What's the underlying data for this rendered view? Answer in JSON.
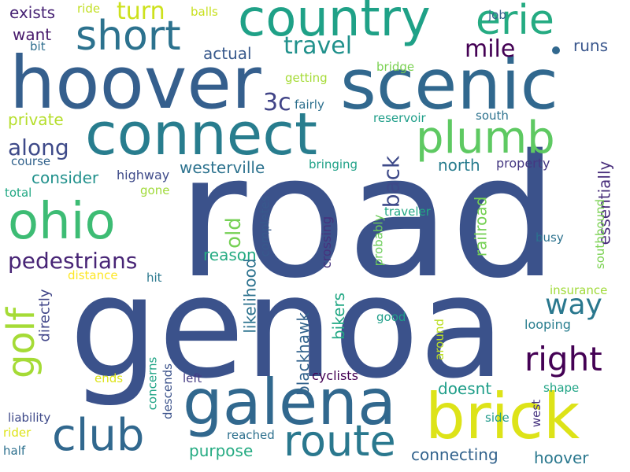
{
  "words": [
    {
      "text": "road",
      "color": "#3b528b"
    },
    {
      "text": "genoa",
      "color": "#3b528b"
    },
    {
      "text": "hoover",
      "color": "#355f8d"
    },
    {
      "text": "scenic",
      "color": "#31688e"
    },
    {
      "text": "connect",
      "color": "#287d8e"
    },
    {
      "text": "country",
      "color": "#1fa187"
    },
    {
      "text": "galena",
      "color": "#31688e"
    },
    {
      "text": "brick",
      "color": "#dde318"
    },
    {
      "text": "plumb",
      "color": "#5ec962"
    },
    {
      "text": "ohio",
      "color": "#3dbc74"
    },
    {
      "text": "route",
      "color": "#2a788e"
    },
    {
      "text": "club",
      "color": "#31688e"
    },
    {
      "text": "short",
      "color": "#2c728e"
    },
    {
      "text": "erie",
      "color": "#25ab82"
    },
    {
      "text": "golf",
      "color": "#a5db36"
    },
    {
      "text": "right",
      "color": "#440154"
    },
    {
      "text": "way",
      "color": "#2a788e"
    },
    {
      "text": "pedestrians",
      "color": "#482576"
    },
    {
      "text": "turn",
      "color": "#cde11d"
    },
    {
      "text": "travel",
      "color": "#21918c"
    },
    {
      "text": "mile",
      "color": "#440154"
    },
    {
      "text": "along",
      "color": "#3e4a89"
    },
    {
      "text": "3c",
      "color": "#414487"
    },
    {
      "text": "back",
      "color": "#3e4a89"
    },
    {
      "text": "westerville",
      "color": "#2c728e"
    },
    {
      "text": "consider",
      "color": "#21918c"
    },
    {
      "text": "old",
      "color": "#75d054"
    },
    {
      "text": "reason",
      "color": "#25ab82"
    },
    {
      "text": "actual",
      "color": "#38598c"
    },
    {
      "text": "runs",
      "color": "#39568c"
    },
    {
      "text": "want",
      "color": "#481a6c"
    },
    {
      "text": "exists",
      "color": "#482475"
    },
    {
      "text": "private",
      "color": "#b5de2b"
    },
    {
      "text": "north",
      "color": "#287c8e"
    },
    {
      "text": "essentially",
      "color": "#472c7a"
    },
    {
      "text": "property",
      "color": "#453882"
    },
    {
      "text": "railroad",
      "color": "#75d054"
    },
    {
      "text": "likelihood",
      "color": "#2c728e"
    },
    {
      "text": "blackhawk",
      "color": "#33638d"
    },
    {
      "text": "bikers",
      "color": "#22a884"
    },
    {
      "text": "directly",
      "color": "#404588"
    },
    {
      "text": "doesnt",
      "color": "#1f9e89"
    },
    {
      "text": "hoover",
      "color": "#2a788e"
    },
    {
      "text": "connecting",
      "color": "#33638d"
    },
    {
      "text": "purpose",
      "color": "#25ab82"
    },
    {
      "text": "cyclists",
      "color": "#440154"
    },
    {
      "text": "crossing",
      "color": "#46327e"
    },
    {
      "text": "highway",
      "color": "#3e4a89"
    },
    {
      "text": "course",
      "color": "#33638d"
    },
    {
      "text": "total",
      "color": "#22a884"
    },
    {
      "text": "gone",
      "color": "#a0da39"
    },
    {
      "text": "distance",
      "color": "#fde725"
    },
    {
      "text": "hit",
      "color": "#2a788e"
    },
    {
      "text": "insurance",
      "color": "#a0da39"
    },
    {
      "text": "looping",
      "color": "#287d8e"
    },
    {
      "text": "busy",
      "color": "#2c728e"
    },
    {
      "text": "southbound",
      "color": "#7ad151"
    },
    {
      "text": "traveler",
      "color": "#22a884"
    },
    {
      "text": "probably",
      "color": "#6ccd5a"
    },
    {
      "text": "completes",
      "color": "#38598c"
    },
    {
      "text": "reservoir",
      "color": "#1f9e89"
    },
    {
      "text": "south",
      "color": "#2c728e"
    },
    {
      "text": "fairly",
      "color": "#2d708e"
    },
    {
      "text": "getting",
      "color": "#a5db36"
    },
    {
      "text": "bridge",
      "color": "#7ad151"
    },
    {
      "text": "bringing",
      "color": "#1fa187"
    },
    {
      "text": "good",
      "color": "#1f9e89"
    },
    {
      "text": "around",
      "color": "#bddf26"
    },
    {
      "text": "concerns",
      "color": "#20a486"
    },
    {
      "text": "descends",
      "color": "#3b528b"
    },
    {
      "text": "ends",
      "color": "#dde318"
    },
    {
      "text": "left",
      "color": "#443a83"
    },
    {
      "text": "west",
      "color": "#46337f"
    },
    {
      "text": "shape",
      "color": "#20a486"
    },
    {
      "text": "side",
      "color": "#1f9a8a"
    },
    {
      "text": "liability",
      "color": "#3e4989"
    },
    {
      "text": "rider",
      "color": "#dde318"
    },
    {
      "text": "half",
      "color": "#2d708e"
    },
    {
      "text": "reached",
      "color": "#2d708e"
    },
    {
      "text": "job",
      "color": "#34618d"
    },
    {
      "text": "ride",
      "color": "#c2df23"
    },
    {
      "text": "balls",
      "color": "#c8e020"
    },
    {
      "text": "bit",
      "color": "#2e6e8e"
    }
  ]
}
